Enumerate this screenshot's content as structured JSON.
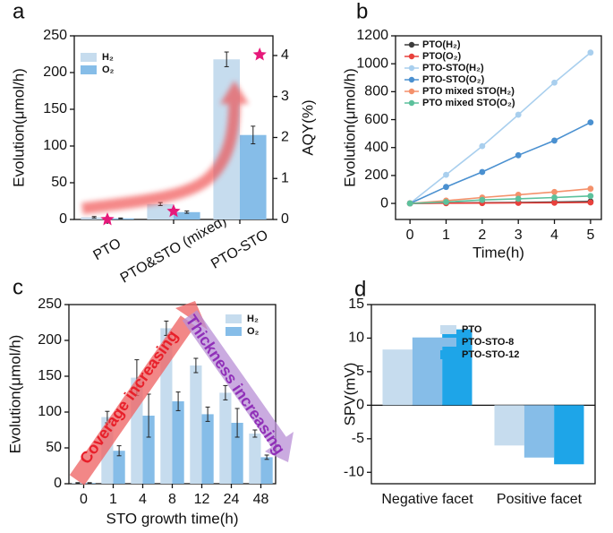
{
  "chart_data": [
    {
      "type": "bar",
      "panel_label": "a",
      "ylabel": "Evolution(μmol/h)",
      "y2label": "AQY(%)",
      "categories": [
        "PTO",
        "PTO&STO (mixed)",
        "PTO-STO"
      ],
      "series": [
        {
          "name": "H₂",
          "color": "#c6dcee",
          "values": [
            3,
            21,
            218
          ],
          "errors": [
            1,
            2,
            10
          ]
        },
        {
          "name": "O₂",
          "color": "#86bde8",
          "values": [
            1.5,
            10,
            115
          ],
          "errors": [
            0.5,
            1.5,
            12
          ]
        }
      ],
      "aqy": {
        "axis": "y2",
        "color": "#e6197a",
        "values": [
          0,
          0.2,
          4.02
        ]
      },
      "ylim": [
        0,
        250
      ],
      "yticks": [
        0,
        50,
        100,
        150,
        200,
        250
      ],
      "y2lim": [
        0,
        4.48
      ],
      "y2ticks": [
        0,
        1,
        2,
        3,
        4
      ],
      "legend": "upper left"
    },
    {
      "type": "line",
      "panel_label": "b",
      "ylabel": "Evolution(μmol/h)",
      "xlabel": "Time(h)",
      "x": [
        0,
        1,
        2,
        3,
        4,
        5
      ],
      "series": [
        {
          "name": "PTO(H₂)",
          "color": "#3c3c3c",
          "values": [
            0,
            3,
            5,
            7,
            10,
            14
          ]
        },
        {
          "name": "PTO(O₂)",
          "color": "#e8413c",
          "values": [
            0,
            1.5,
            2.5,
            3.5,
            5,
            7
          ]
        },
        {
          "name": "PTO-STO(H₂)",
          "color": "#a9cfee",
          "values": [
            0,
            205,
            410,
            635,
            865,
            1080
          ]
        },
        {
          "name": "PTO-STO(O₂)",
          "color": "#4a90d0",
          "values": [
            0,
            118,
            225,
            345,
            450,
            580
          ]
        },
        {
          "name": "PTO mixed STO(H₂)",
          "color": "#f4916b",
          "values": [
            0,
            20,
            42,
            62,
            82,
            105
          ]
        },
        {
          "name": "PTO mixed STO(O₂)",
          "color": "#5cc19c",
          "values": [
            0,
            10,
            25,
            33,
            42,
            53
          ]
        }
      ],
      "xlim": [
        -0.4,
        5.3
      ],
      "xticks": [
        0,
        1,
        2,
        3,
        4,
        5
      ],
      "ylim": [
        -115,
        1200
      ],
      "yticks": [
        0,
        200,
        400,
        600,
        800,
        1000,
        1200
      ],
      "legend": "upper left"
    },
    {
      "type": "bar",
      "panel_label": "c",
      "ylabel": "Evolution(μmol/h)",
      "xlabel": "STO growth time(h)",
      "categories": [
        "0",
        "1",
        "4",
        "8",
        "12",
        "24",
        "48"
      ],
      "series": [
        {
          "name": "H₂",
          "color": "#c6dcee",
          "values": [
            1,
            93,
            148,
            217,
            165,
            127,
            70
          ],
          "errors": [
            0.5,
            8,
            25,
            10,
            10,
            10,
            5
          ]
        },
        {
          "name": "O₂",
          "color": "#86bde8",
          "values": [
            1,
            46,
            95,
            115,
            97,
            85,
            37
          ],
          "errors": [
            0.5,
            7,
            30,
            13,
            10,
            20,
            3
          ]
        }
      ],
      "annotations": [
        "Coverage increasing",
        "Thickness increasing"
      ],
      "ylim": [
        0,
        250
      ],
      "yticks": [
        0,
        50,
        100,
        150,
        200,
        250
      ],
      "legend": "upper right"
    },
    {
      "type": "bar",
      "panel_label": "d",
      "ylabel": "SPV(mV)",
      "categories": [
        "Negative facet",
        "Positive facet"
      ],
      "series": [
        {
          "name": "PTO",
          "color": "#c6dcee",
          "values": [
            8.3,
            -6.0
          ]
        },
        {
          "name": "PTO-STO-8",
          "color": "#86bde8",
          "values": [
            10.1,
            -7.8
          ]
        },
        {
          "name": "PTO-STO-12",
          "color": "#1ea5e8",
          "values": [
            11.3,
            -8.8
          ]
        }
      ],
      "ylim": [
        -11.7,
        15
      ],
      "yticks": [
        -10,
        -5,
        0,
        5,
        10,
        15
      ],
      "legend": "upper right"
    }
  ]
}
